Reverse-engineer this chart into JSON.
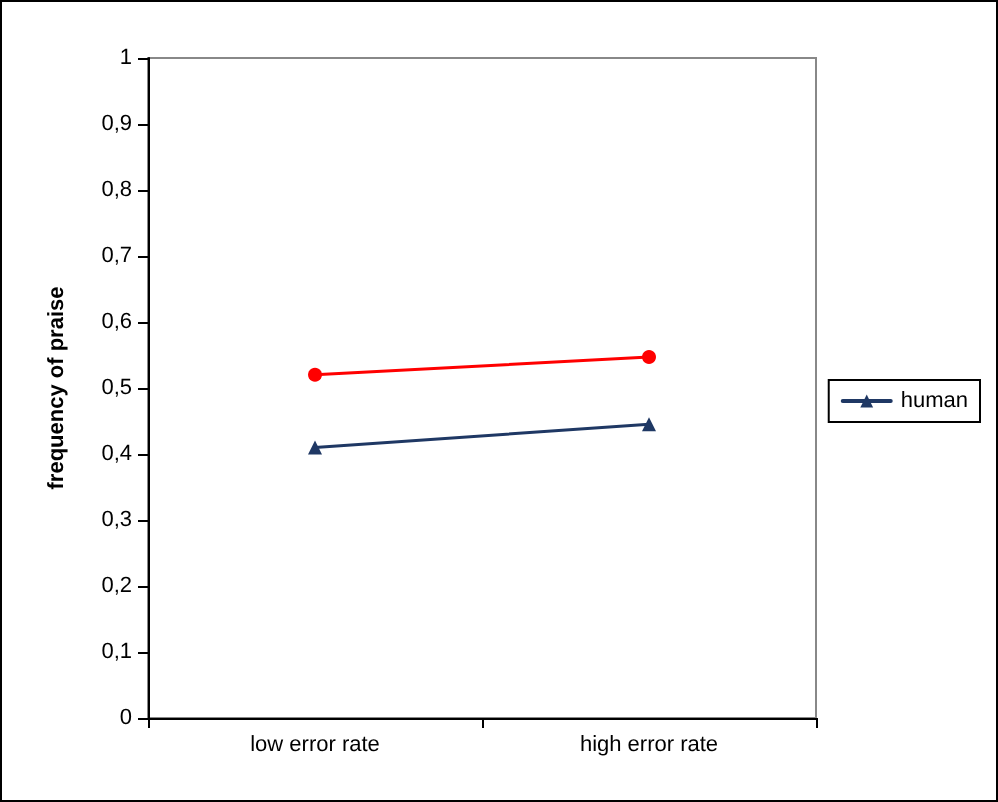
{
  "chart_data": {
    "type": "line",
    "ylabel": "frequency of praise",
    "categories": [
      "low error rate",
      "high error rate"
    ],
    "series": [
      {
        "color": "#ff0000",
        "marker": "circle",
        "values": [
          0.52,
          0.547
        ]
      },
      {
        "name": "human",
        "color": "#1f3864",
        "marker": "triangle",
        "values": [
          0.41,
          0.445
        ]
      }
    ],
    "ylim": [
      0,
      1
    ],
    "yticks": [
      0,
      {
        "value": 0.1,
        "label": "0,1"
      },
      {
        "value": 0.2,
        "label": "0,2"
      },
      {
        "value": 0.3,
        "label": "0,3"
      },
      {
        "value": 0.4,
        "label": "0,4"
      },
      {
        "value": 0.5,
        "label": "0,5"
      },
      {
        "value": 0.6,
        "label": "0,6"
      },
      {
        "value": 0.7,
        "label": "0,7"
      },
      {
        "value": 0.8,
        "label": "0,8"
      },
      {
        "value": 0.9,
        "label": "0,9"
      },
      1
    ],
    "grid": false,
    "legend": "right",
    "line_style": "solid"
  }
}
